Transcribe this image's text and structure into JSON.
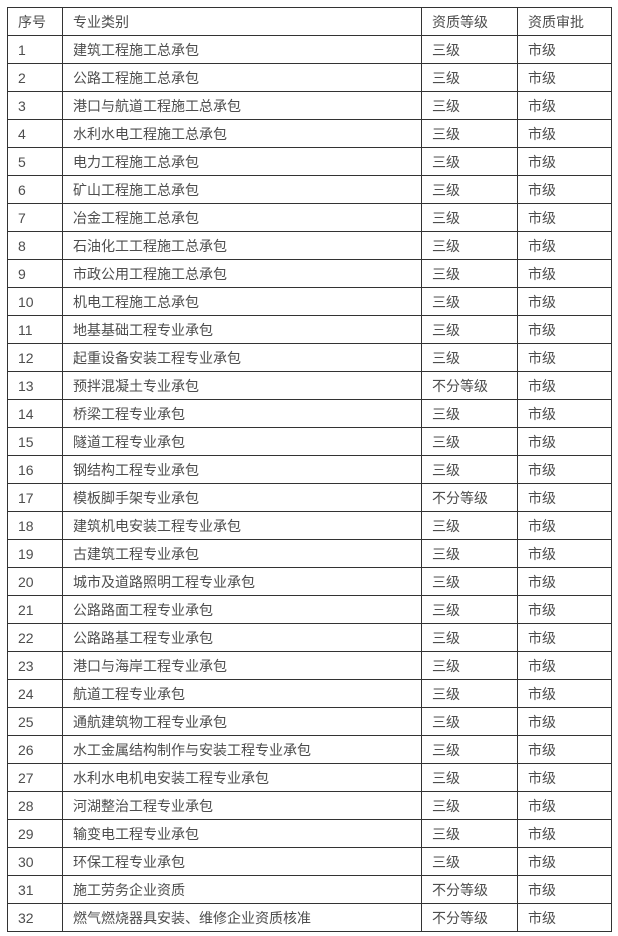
{
  "table": {
    "headers": {
      "no": "序号",
      "category": "专业类别",
      "level": "资质等级",
      "approval": "资质审批"
    },
    "rows": [
      [
        "1",
        "建筑工程施工总承包",
        "三级",
        "市级"
      ],
      [
        "2",
        "公路工程施工总承包",
        "三级",
        "市级"
      ],
      [
        "3",
        "港口与航道工程施工总承包",
        "三级",
        "市级"
      ],
      [
        "4",
        "水利水电工程施工总承包",
        "三级",
        "市级"
      ],
      [
        "5",
        "电力工程施工总承包",
        "三级",
        "市级"
      ],
      [
        "6",
        "矿山工程施工总承包",
        "三级",
        "市级"
      ],
      [
        "7",
        "冶金工程施工总承包",
        "三级",
        "市级"
      ],
      [
        "8",
        "石油化工工程施工总承包",
        "三级",
        "市级"
      ],
      [
        "9",
        "市政公用工程施工总承包",
        "三级",
        "市级"
      ],
      [
        "10",
        "机电工程施工总承包",
        "三级",
        "市级"
      ],
      [
        "11",
        "地基基础工程专业承包",
        "三级",
        "市级"
      ],
      [
        "12",
        "起重设备安装工程专业承包",
        "三级",
        "市级"
      ],
      [
        "13",
        "预拌混凝土专业承包",
        "不分等级",
        "市级"
      ],
      [
        "14",
        "桥梁工程专业承包",
        "三级",
        "市级"
      ],
      [
        "15",
        "隧道工程专业承包",
        "三级",
        "市级"
      ],
      [
        "16",
        "钢结构工程专业承包",
        "三级",
        "市级"
      ],
      [
        "17",
        "模板脚手架专业承包",
        "不分等级",
        "市级"
      ],
      [
        "18",
        "建筑机电安装工程专业承包",
        "三级",
        "市级"
      ],
      [
        "19",
        "古建筑工程专业承包",
        "三级",
        "市级"
      ],
      [
        "20",
        "城市及道路照明工程专业承包",
        "三级",
        "市级"
      ],
      [
        "21",
        "公路路面工程专业承包",
        "三级",
        "市级"
      ],
      [
        "22",
        "公路路基工程专业承包",
        "三级",
        "市级"
      ],
      [
        "23",
        "港口与海岸工程专业承包",
        "三级",
        "市级"
      ],
      [
        "24",
        "航道工程专业承包",
        "三级",
        "市级"
      ],
      [
        "25",
        "通航建筑物工程专业承包",
        "三级",
        "市级"
      ],
      [
        "26",
        "水工金属结构制作与安装工程专业承包",
        "三级",
        "市级"
      ],
      [
        "27",
        "水利水电机电安装工程专业承包",
        "三级",
        "市级"
      ],
      [
        "28",
        "河湖整治工程专业承包",
        "三级",
        "市级"
      ],
      [
        "29",
        "输变电工程专业承包",
        "三级",
        "市级"
      ],
      [
        "30",
        "环保工程专业承包",
        "三级",
        "市级"
      ],
      [
        "31",
        "施工劳务企业资质",
        "不分等级",
        "市级"
      ],
      [
        "32",
        "燃气燃烧器具安装、维修企业资质核准",
        "不分等级",
        "市级"
      ]
    ],
    "colors": {
      "border": "#333333",
      "text": "#4d4d4d",
      "background": "#ffffff"
    }
  }
}
